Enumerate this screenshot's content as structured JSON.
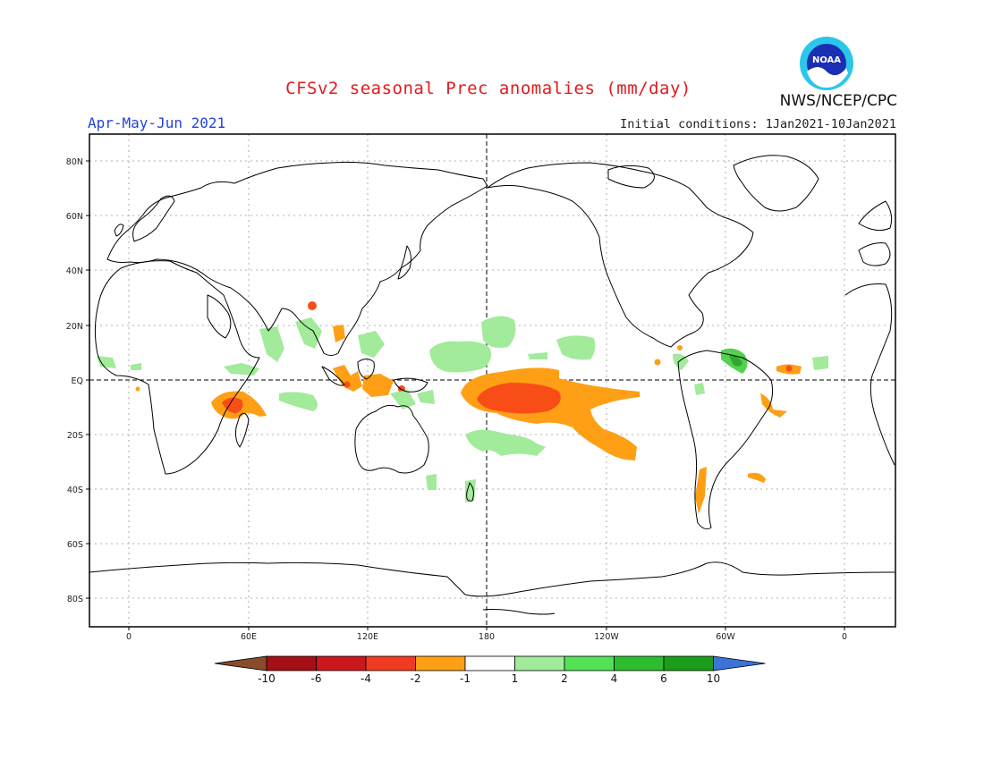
{
  "header": {
    "title": "CFSv2 seasonal Prec anomalies (mm/day)",
    "season": "Apr-May-Jun 2021",
    "initial_conditions": "Initial conditions: 1Jan2021-10Jan2021",
    "org": "NWS/NCEP/CPC",
    "logo_text": "NOAA"
  },
  "map": {
    "lat_ticks": [
      "80N",
      "60N",
      "40N",
      "20N",
      "EQ",
      "20S",
      "40S",
      "60S",
      "80S"
    ],
    "lon_ticks": [
      "0",
      "60E",
      "120E",
      "180",
      "120W",
      "60W",
      "0"
    ]
  },
  "colorbar": {
    "labels": [
      "-10",
      "-6",
      "-4",
      "-2",
      "-1",
      "1",
      "2",
      "4",
      "6",
      "10"
    ],
    "colors": [
      "#8a4b2d",
      "#a50f15",
      "#cb181d",
      "#f03b20",
      "#fe9f15",
      "#ffffff",
      "#a1eb9a",
      "#53e256",
      "#2ebd2e",
      "#1a9d1a",
      "#3a74d8"
    ]
  },
  "anomaly_colors": {
    "wet_light": "#a1eb9a",
    "wet_medium": "#53d24f",
    "wet_strong": "#2ea82e",
    "dry_light": "#fe9f15",
    "dry_medium": "#f94d18",
    "dry_strong": "#d7301f"
  }
}
